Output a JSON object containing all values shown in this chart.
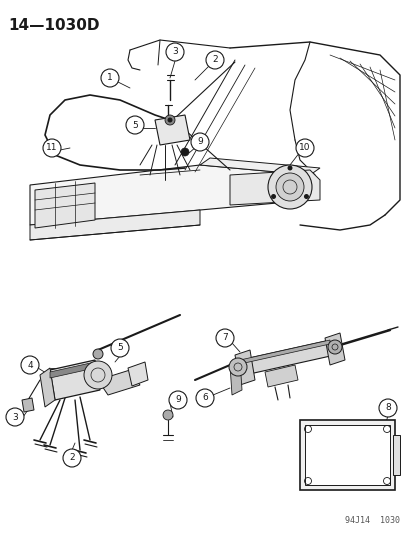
{
  "title": "14—1030D",
  "subtitle_code": "94J14  1030",
  "bg": "#ffffff",
  "lc": "#1a1a1a",
  "fig_w": 4.14,
  "fig_h": 5.33,
  "dpi": 100
}
